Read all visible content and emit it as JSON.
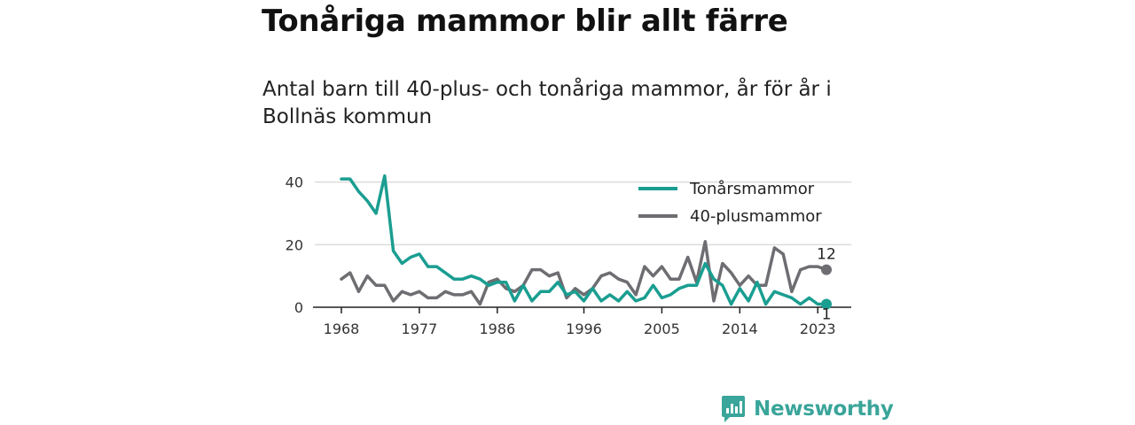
{
  "header": {
    "title": "Tonåriga mammor blir allt färre",
    "subtitle": "Antal barn till 40-plus- och tonåriga mammor, år för år i Bollnäs kommun"
  },
  "branding": {
    "name": "Newsworthy",
    "icon": "newsworthy-logo-icon",
    "color": "#3aa59a"
  },
  "chart_data": {
    "type": "line",
    "title": "Tonåriga mammor blir allt färre",
    "subtitle": "Antal barn till 40-plus- och tonåriga mammor, år för år i Bollnäs kommun",
    "xlabel": "",
    "ylabel": "",
    "xlim": [
      1968,
      2024
    ],
    "ylim": [
      0,
      45
    ],
    "x_ticks": [
      "1968",
      "1977",
      "1986",
      "1996",
      "2005",
      "2014",
      "2023"
    ],
    "y_ticks": [
      "0",
      "20",
      "40"
    ],
    "grid": "horizontal",
    "legend_position": "top-right",
    "x": [
      1968,
      1969,
      1970,
      1971,
      1972,
      1973,
      1974,
      1975,
      1976,
      1977,
      1978,
      1979,
      1980,
      1981,
      1982,
      1983,
      1984,
      1985,
      1986,
      1987,
      1988,
      1989,
      1990,
      1991,
      1992,
      1993,
      1994,
      1995,
      1996,
      1997,
      1998,
      1999,
      2000,
      2001,
      2002,
      2003,
      2004,
      2005,
      2006,
      2007,
      2008,
      2009,
      2010,
      2011,
      2012,
      2013,
      2014,
      2015,
      2016,
      2017,
      2018,
      2019,
      2020,
      2021,
      2022,
      2023,
      2024
    ],
    "series": [
      {
        "name": "Tonårsmammor",
        "color": "#1a9e91",
        "values": [
          41,
          41,
          37,
          34,
          30,
          42,
          18,
          14,
          16,
          17,
          13,
          13,
          11,
          9,
          9,
          10,
          9,
          7,
          8,
          8,
          2,
          7,
          2,
          5,
          5,
          8,
          4,
          5,
          2,
          6,
          2,
          4,
          2,
          5,
          2,
          3,
          7,
          3,
          4,
          6,
          7,
          7,
          14,
          9,
          7,
          1,
          6,
          2,
          8,
          1,
          5,
          4,
          3,
          1,
          3,
          1,
          1
        ],
        "end_label": "1"
      },
      {
        "name": "40-plusmammor",
        "color": "#6d6d72",
        "values": [
          9,
          11,
          5,
          10,
          7,
          7,
          2,
          5,
          4,
          5,
          3,
          3,
          5,
          4,
          4,
          5,
          1,
          8,
          9,
          6,
          5,
          7,
          12,
          12,
          10,
          11,
          3,
          6,
          4,
          6,
          10,
          11,
          9,
          8,
          4,
          13,
          10,
          13,
          9,
          9,
          16,
          8,
          21,
          2,
          14,
          11,
          7,
          10,
          7,
          7,
          19,
          17,
          5,
          12,
          13,
          13,
          12
        ],
        "end_label": "12"
      }
    ]
  }
}
